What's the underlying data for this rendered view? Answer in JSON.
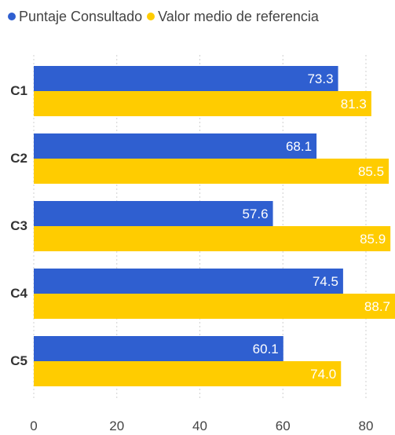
{
  "chart_data": {
    "type": "bar",
    "orientation": "horizontal",
    "categories": [
      "C1",
      "C2",
      "C3",
      "C4",
      "C5"
    ],
    "series": [
      {
        "name": "Puntaje Consultado",
        "values": [
          73.3,
          68.1,
          57.6,
          74.5,
          60.1
        ],
        "color": "#2F5FD0"
      },
      {
        "name": "Valor medio de referencia",
        "values": [
          81.3,
          85.5,
          85.9,
          88.7,
          74.0
        ],
        "color": "#FFCC00"
      }
    ],
    "xlim": [
      0,
      87
    ],
    "x_ticks": [
      "0",
      "20",
      "40",
      "60",
      "80"
    ],
    "grid": true,
    "legend_position": "top-left",
    "data_labels": true
  }
}
